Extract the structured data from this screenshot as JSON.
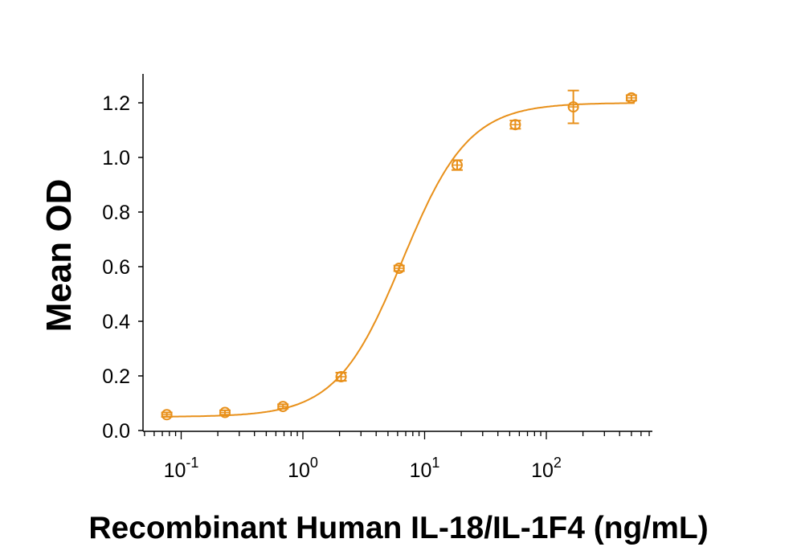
{
  "chart_data": {
    "type": "scatter",
    "title": "",
    "xlabel": "Recombinant Human IL-18/IL-1F4 (ng/mL)",
    "ylabel": "Mean OD",
    "xscale": "log",
    "xlim": [
      0.06,
      800
    ],
    "ylim": [
      0,
      1.3
    ],
    "grid": false,
    "legend": "none",
    "color": "#E8901A",
    "x_ticks": [
      {
        "base": "10",
        "exp": "-1",
        "value": 0.1
      },
      {
        "base": "10",
        "exp": "0",
        "value": 1
      },
      {
        "base": "10",
        "exp": "1",
        "value": 10
      },
      {
        "base": "10",
        "exp": "2",
        "value": 100
      }
    ],
    "y_ticks": [
      "0.0",
      "0.2",
      "0.4",
      "0.6",
      "0.8",
      "1.0",
      "1.2"
    ],
    "series": [
      {
        "name": "Mean OD",
        "x": [
          0.0762,
          0.229,
          0.686,
          2.06,
          6.17,
          18.5,
          55.6,
          166.7,
          500
        ],
        "y": [
          0.058,
          0.066,
          0.088,
          0.197,
          0.594,
          0.972,
          1.12,
          1.185,
          1.218
        ],
        "error": [
          0.008,
          0.008,
          0.008,
          0.015,
          0.01,
          0.018,
          0.015,
          0.06,
          0.01
        ]
      }
    ],
    "fit": {
      "model": "4PL",
      "bottom": 0.05,
      "top": 1.2,
      "ec50": 6.6,
      "hill": 1.6
    }
  }
}
